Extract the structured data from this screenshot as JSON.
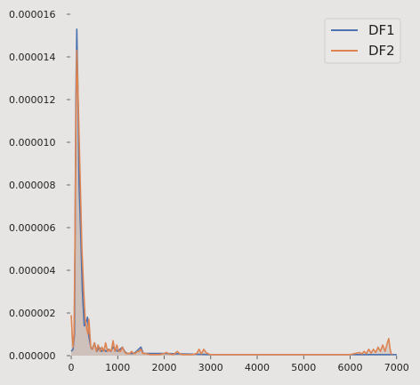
{
  "chart_data": {
    "type": "line",
    "title": "",
    "xlabel": "",
    "ylabel": "",
    "xlim": [
      -20,
      7100
    ],
    "ylim": [
      0,
      1.6e-05
    ],
    "x_ticks": [
      0,
      1000,
      2000,
      3000,
      4000,
      5000,
      6000,
      7000
    ],
    "x_tick_labels": [
      "0",
      "1000",
      "2000",
      "3000",
      "4000",
      "5000",
      "6000",
      "7000"
    ],
    "y_ticks": [
      0,
      2e-06,
      4e-06,
      6e-06,
      8e-06,
      1e-05,
      1.2e-05,
      1.4e-05,
      1.6e-05
    ],
    "y_tick_labels": [
      "0.000000",
      "0.000002",
      "0.000004",
      "0.000006",
      "0.000008",
      "0.000010",
      "0.000012",
      "0.000014",
      "0.000016"
    ],
    "grid": false,
    "legend_position": "top-right",
    "fill_under": true,
    "fill_color": "#c9b8b2",
    "series": [
      {
        "name": "DF1",
        "color": "#4c72b0",
        "x": [
          0,
          40,
          70,
          100,
          120,
          140,
          170,
          200,
          240,
          280,
          310,
          350,
          380,
          420,
          450,
          500,
          550,
          600,
          650,
          700,
          750,
          800,
          850,
          900,
          950,
          1000,
          1050,
          1100,
          1150,
          1200,
          1250,
          1300,
          1350,
          1400,
          1450,
          1500,
          1550,
          1600,
          2000,
          3000,
          4000,
          5000,
          6000,
          7000
        ],
        "values": [
          2e-07,
          3e-07,
          1e-06,
          1.2e-05,
          1.53e-05,
          1.3e-05,
          8e-06,
          6e-06,
          3e-06,
          1.4e-06,
          1.5e-06,
          1.8e-06,
          9e-07,
          4e-07,
          3e-07,
          6e-07,
          2e-07,
          4e-07,
          2e-07,
          3e-07,
          2e-07,
          3e-07,
          2e-07,
          4e-07,
          3e-07,
          2e-07,
          3e-07,
          4e-07,
          2e-07,
          1e-07,
          1e-07,
          1e-07,
          1e-07,
          2e-07,
          3e-07,
          4e-07,
          1e-07,
          1e-07,
          1e-07,
          5e-08,
          5e-08,
          5e-08,
          5e-08,
          5e-08
        ]
      },
      {
        "name": "DF2",
        "color": "#dd8452",
        "x": [
          0,
          20,
          40,
          60,
          80,
          100,
          120,
          150,
          190,
          230,
          270,
          300,
          330,
          360,
          380,
          420,
          460,
          500,
          540,
          580,
          620,
          660,
          700,
          740,
          780,
          820,
          860,
          900,
          940,
          980,
          1020,
          1060,
          1100,
          1140,
          1180,
          1220,
          1260,
          1300,
          1340,
          1380,
          1420,
          1460,
          1500,
          1540,
          1600,
          1700,
          1800,
          1900,
          2000,
          2050,
          2100,
          2200,
          2280,
          2340,
          2400,
          2500,
          2600,
          2700,
          2750,
          2800,
          2850,
          2900,
          2950,
          3000,
          3100,
          3200,
          3400,
          3600,
          4000,
          4500,
          5000,
          5500,
          5800,
          6000,
          6100,
          6200,
          6250,
          6300,
          6350,
          6400,
          6450,
          6500,
          6550,
          6600,
          6650,
          6700,
          6750,
          6800,
          6830,
          6860,
          6880,
          6900
        ],
        "values": [
          1.9e-06,
          1e-06,
          4e-07,
          1e-06,
          5e-06,
          1.1e-05,
          1.43e-05,
          1.2e-05,
          8.5e-06,
          5e-06,
          3e-06,
          1.7e-06,
          1.3e-06,
          1e-06,
          1.7e-06,
          4e-07,
          3e-07,
          6e-07,
          2e-07,
          5e-07,
          2e-07,
          4e-07,
          2e-07,
          6e-07,
          2e-07,
          3e-07,
          2e-07,
          7e-07,
          2e-07,
          5e-07,
          2e-07,
          2e-07,
          4e-07,
          2e-07,
          1e-07,
          1e-07,
          1e-07,
          2e-07,
          1e-07,
          1e-07,
          2e-07,
          2e-07,
          3e-07,
          1e-07,
          1e-07,
          5e-08,
          5e-08,
          5e-08,
          1e-07,
          1.5e-07,
          8e-08,
          5e-08,
          2e-07,
          8e-08,
          5e-08,
          5e-08,
          5e-08,
          1e-07,
          3e-07,
          8e-08,
          3e-07,
          1.5e-07,
          8e-08,
          5e-08,
          5e-08,
          5e-08,
          5e-08,
          5e-08,
          5e-08,
          5e-08,
          5e-08,
          5e-08,
          5e-08,
          5e-08,
          1e-07,
          1.5e-07,
          8e-08,
          2e-07,
          1e-07,
          3e-07,
          1.2e-07,
          3e-07,
          1.5e-07,
          4e-07,
          2e-07,
          5e-07,
          2e-07,
          6e-07,
          8e-07,
          3e-07,
          1e-07,
          5e-08
        ]
      }
    ]
  }
}
